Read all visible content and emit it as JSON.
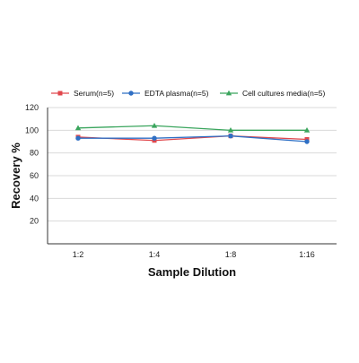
{
  "chart_data": {
    "type": "line",
    "xlabel": "Sample Dilution",
    "ylabel": "Recovery %",
    "categories": [
      "1:2",
      "1:4",
      "1:8",
      "1:16"
    ],
    "ylim": [
      0,
      120
    ],
    "yticks": [
      20,
      40,
      60,
      80,
      100,
      120
    ],
    "grid": "horizontal",
    "legend_position": "top",
    "series": [
      {
        "name": "Serum(n=5)",
        "values": [
          94,
          91,
          95,
          92
        ],
        "color": "#e0474c",
        "marker": "square"
      },
      {
        "name": "EDTA plasma(n=5)",
        "values": [
          93,
          93,
          95,
          90
        ],
        "color": "#2f6fc4",
        "marker": "circle"
      },
      {
        "name": "Cell cultures media(n=5)",
        "values": [
          102,
          104,
          100,
          100
        ],
        "color": "#3aa55d",
        "marker": "triangle"
      }
    ]
  }
}
